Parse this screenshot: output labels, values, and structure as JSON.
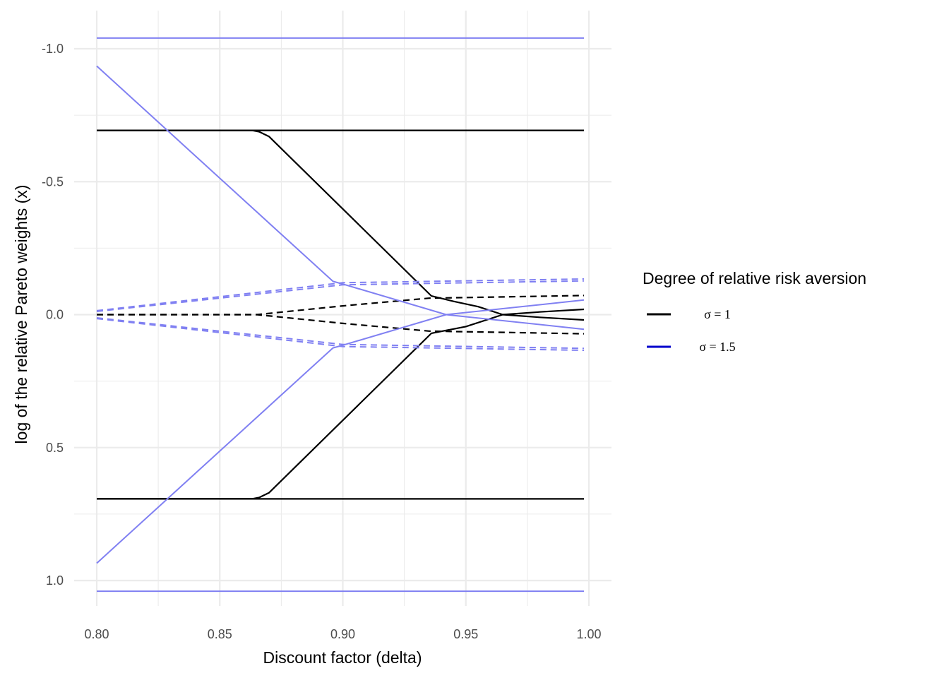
{
  "chart_data": {
    "type": "line",
    "xlabel": "Discount factor (delta)",
    "ylabel": "log of the relative Pareto weights (x)",
    "xlim": [
      0.8,
      1.0
    ],
    "ylim": [
      1.0,
      -1.0
    ],
    "y_reversed": true,
    "x_ticks": [
      0.8,
      0.85,
      0.9,
      0.95,
      1.0
    ],
    "x_tick_labels": [
      "0.80",
      "0.85",
      "0.90",
      "0.95",
      "1.00"
    ],
    "y_ticks": [
      -1.0,
      -0.5,
      0.0,
      0.5,
      1.0
    ],
    "y_tick_labels": [
      "-1.0",
      "-0.5",
      "0.0",
      "0.5",
      "1.0"
    ],
    "grid": true,
    "legend": {
      "title": "Degree of relative risk aversion",
      "position": "right",
      "entries": [
        {
          "label": "σ = 1",
          "color": "#000000"
        },
        {
          "label": "σ = 1.5",
          "color": "#0000cc"
        }
      ]
    },
    "colors": {
      "sigma_1": "#000000",
      "sigma_1_5": "#8080f2"
    },
    "series": [
      {
        "group": "sigma_1",
        "style": "solid",
        "x": [
          0.8,
          0.998
        ],
        "y": [
          -0.693,
          -0.693
        ]
      },
      {
        "group": "sigma_1",
        "style": "solid",
        "x": [
          0.8,
          0.998
        ],
        "y": [
          0.693,
          0.693
        ]
      },
      {
        "group": "sigma_1",
        "style": "solid",
        "x": [
          0.8,
          0.863,
          0.866,
          0.87,
          0.936,
          0.945,
          0.955,
          0.965,
          0.98,
          0.998
        ],
        "y": [
          -0.693,
          -0.693,
          -0.688,
          -0.67,
          -0.07,
          -0.05,
          -0.03,
          0.0,
          0.01,
          0.02
        ]
      },
      {
        "group": "sigma_1",
        "style": "solid",
        "x": [
          0.8,
          0.863,
          0.866,
          0.87,
          0.936,
          0.95,
          0.965,
          0.98,
          0.998
        ],
        "y": [
          0.693,
          0.693,
          0.688,
          0.67,
          0.07,
          0.045,
          0.0,
          -0.01,
          -0.02
        ]
      },
      {
        "group": "sigma_1",
        "style": "dashed",
        "x": [
          0.8,
          0.865,
          0.9,
          0.935,
          0.998
        ],
        "y": [
          0.0,
          0.0,
          -0.033,
          -0.062,
          -0.072
        ]
      },
      {
        "group": "sigma_1",
        "style": "dashed",
        "x": [
          0.8,
          0.865,
          0.9,
          0.935,
          0.998
        ],
        "y": [
          0.0,
          0.0,
          0.033,
          0.062,
          0.072
        ]
      },
      {
        "group": "sigma_1_5",
        "style": "solid",
        "x": [
          0.8,
          0.998
        ],
        "y": [
          -1.04,
          -1.04
        ]
      },
      {
        "group": "sigma_1_5",
        "style": "solid",
        "x": [
          0.8,
          0.998
        ],
        "y": [
          1.04,
          1.04
        ]
      },
      {
        "group": "sigma_1_5",
        "style": "solid",
        "x": [
          0.8,
          0.896,
          0.9,
          0.942,
          0.998
        ],
        "y": [
          -0.935,
          -0.125,
          -0.115,
          0.0,
          0.055
        ]
      },
      {
        "group": "sigma_1_5",
        "style": "solid",
        "x": [
          0.8,
          0.896,
          0.9,
          0.942,
          0.998
        ],
        "y": [
          0.935,
          0.125,
          0.115,
          0.0,
          -0.055
        ]
      },
      {
        "group": "sigma_1_5",
        "style": "dashed",
        "x": [
          0.8,
          0.9,
          0.998
        ],
        "y": [
          -0.012,
          -0.112,
          -0.127
        ]
      },
      {
        "group": "sigma_1_5",
        "style": "dashed",
        "x": [
          0.8,
          0.9,
          0.998
        ],
        "y": [
          -0.015,
          -0.12,
          -0.134
        ]
      },
      {
        "group": "sigma_1_5",
        "style": "dashed",
        "x": [
          0.8,
          0.9,
          0.998
        ],
        "y": [
          0.012,
          0.112,
          0.127
        ]
      },
      {
        "group": "sigma_1_5",
        "style": "dashed",
        "x": [
          0.8,
          0.9,
          0.998
        ],
        "y": [
          0.015,
          0.12,
          0.134
        ]
      }
    ]
  }
}
